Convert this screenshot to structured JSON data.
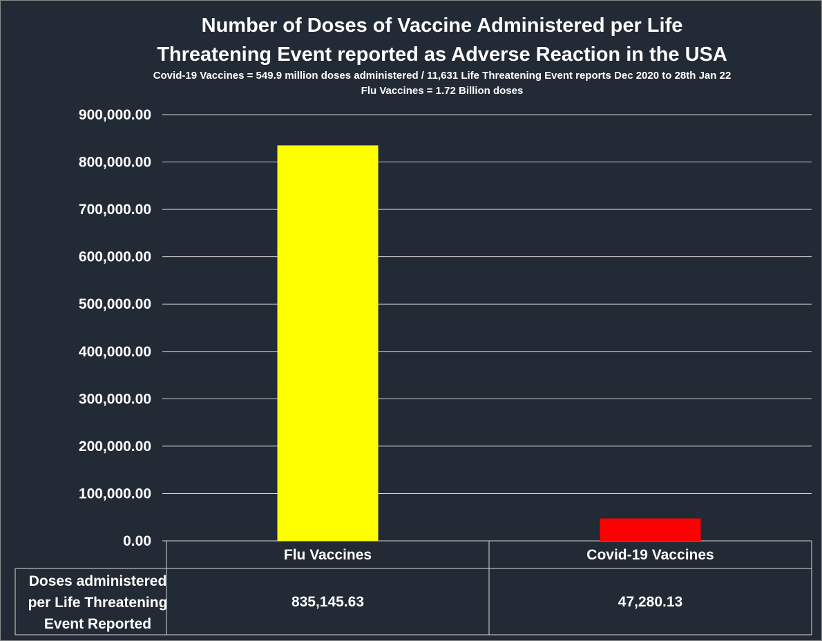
{
  "chart_data": {
    "type": "bar",
    "title_lines": [
      "Number of Doses of Vaccine Administered per Life",
      "Threatening Event reported as Adverse Reaction in the USA"
    ],
    "subtitle_lines": [
      "Covid-19 Vaccines = 549.9 million doses administered / 11,631 Life Threatening Event reports Dec 2020 to 28th Jan 22",
      "Flu Vaccines = 1.72 Billion doses"
    ],
    "categories": [
      "Flu Vaccines",
      "Covid-19 Vaccines"
    ],
    "series": [
      {
        "row_label_lines": [
          "Doses administered",
          "per Life Threatening",
          "Event Reported"
        ],
        "values": [
          835145.63,
          47280.13
        ],
        "value_labels": [
          "835,145.63",
          "47,280.13"
        ],
        "colors": [
          "#ffff00",
          "#ff0000"
        ]
      }
    ],
    "ylim": [
      0,
      900000
    ],
    "yticks": [
      {
        "value": 0,
        "label": "0.00"
      },
      {
        "value": 100000,
        "label": "100,000.00"
      },
      {
        "value": 200000,
        "label": "200,000.00"
      },
      {
        "value": 300000,
        "label": "300,000.00"
      },
      {
        "value": 400000,
        "label": "400,000.00"
      },
      {
        "value": 500000,
        "label": "500,000.00"
      },
      {
        "value": 600000,
        "label": "600,000.00"
      },
      {
        "value": 700000,
        "label": "700,000.00"
      },
      {
        "value": 800000,
        "label": "800,000.00"
      },
      {
        "value": 900000,
        "label": "900,000.00"
      }
    ],
    "grid": true,
    "data_table": true,
    "colors": {
      "background": "#222a35",
      "gridline": "#d9d9d9",
      "text": "#ffffff"
    }
  }
}
